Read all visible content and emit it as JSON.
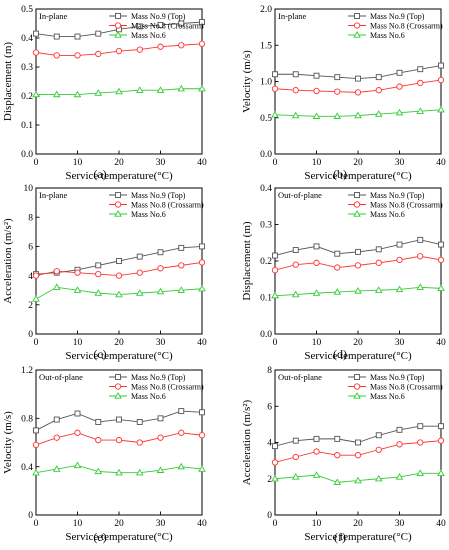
{
  "chart_data": [
    {
      "type": "line",
      "panel_label": "(a)",
      "annotation": "In-plane",
      "xlabel": "Service temperature(°C)",
      "ylabel": "Displacement (m)",
      "xlim": [
        0,
        40
      ],
      "ylim": [
        0,
        0.5
      ],
      "xticks": [
        0,
        10,
        20,
        30,
        40
      ],
      "yticks": [
        0,
        0.1,
        0.2,
        0.3,
        0.4,
        0.5
      ],
      "yticklabels": [
        "0.0",
        "0.1",
        "0.2",
        "0.3",
        "0.4",
        "0.5"
      ],
      "legend": "top-right",
      "x": [
        0,
        5,
        10,
        15,
        20,
        25,
        30,
        35,
        40
      ],
      "series": [
        {
          "name": "Mass No.9 (Top)",
          "marker": "square",
          "color": "#555555",
          "values": [
            0.415,
            0.405,
            0.405,
            0.415,
            0.43,
            0.44,
            0.445,
            0.45,
            0.455
          ]
        },
        {
          "name": "Mass No.8 (Crossarm)",
          "marker": "circle",
          "color": "#ff3333",
          "values": [
            0.35,
            0.34,
            0.34,
            0.345,
            0.355,
            0.36,
            0.37,
            0.375,
            0.38
          ]
        },
        {
          "name": "Mass No.6",
          "marker": "triangle",
          "color": "#33cc33",
          "values": [
            0.205,
            0.205,
            0.205,
            0.21,
            0.215,
            0.22,
            0.22,
            0.225,
            0.225
          ]
        }
      ]
    },
    {
      "type": "line",
      "panel_label": "(b)",
      "annotation": "In-plane",
      "xlabel": "Service temperature(°C)",
      "ylabel": "Velocity (m/s)",
      "xlim": [
        0,
        40
      ],
      "ylim": [
        0,
        2.0
      ],
      "xticks": [
        0,
        10,
        20,
        30,
        40
      ],
      "yticks": [
        0,
        0.5,
        1.0,
        1.5,
        2.0
      ],
      "yticklabels": [
        "0.0",
        "0.5",
        "1.0",
        "1.5",
        "2.0"
      ],
      "legend": "top-right",
      "x": [
        0,
        5,
        10,
        15,
        20,
        25,
        30,
        35,
        40
      ],
      "series": [
        {
          "name": "Mass No.9 (Top)",
          "marker": "square",
          "color": "#555555",
          "values": [
            1.1,
            1.1,
            1.08,
            1.06,
            1.04,
            1.06,
            1.12,
            1.17,
            1.22
          ]
        },
        {
          "name": "Mass No.8 (Crossarm)",
          "marker": "circle",
          "color": "#ff3333",
          "values": [
            0.9,
            0.88,
            0.87,
            0.86,
            0.85,
            0.88,
            0.93,
            0.98,
            1.02
          ]
        },
        {
          "name": "Mass No.6",
          "marker": "triangle",
          "color": "#33cc33",
          "values": [
            0.54,
            0.53,
            0.52,
            0.52,
            0.53,
            0.55,
            0.57,
            0.59,
            0.61
          ]
        }
      ]
    },
    {
      "type": "line",
      "panel_label": "(c)",
      "annotation": "In-plane",
      "xlabel": "Service temperature(°C)",
      "ylabel": "Acceleration (m/s²)",
      "xlim": [
        0,
        40
      ],
      "ylim": [
        0,
        10
      ],
      "xticks": [
        0,
        10,
        20,
        30,
        40
      ],
      "yticks": [
        0,
        2,
        4,
        6,
        8,
        10
      ],
      "yticklabels": [
        "0",
        "2",
        "4",
        "6",
        "8",
        "10"
      ],
      "legend": "top-right",
      "x": [
        0,
        5,
        10,
        15,
        20,
        25,
        30,
        35,
        40
      ],
      "series": [
        {
          "name": "Mass No.9 (Top)",
          "marker": "square",
          "color": "#555555",
          "values": [
            4.1,
            4.2,
            4.4,
            4.7,
            5.0,
            5.3,
            5.6,
            5.9,
            6.0
          ]
        },
        {
          "name": "Mass No.8 (Crossarm)",
          "marker": "circle",
          "color": "#ff3333",
          "values": [
            4.0,
            4.3,
            4.2,
            4.1,
            4.0,
            4.2,
            4.5,
            4.7,
            4.9
          ]
        },
        {
          "name": "Mass No.6",
          "marker": "triangle",
          "color": "#33cc33",
          "values": [
            2.4,
            3.2,
            3.0,
            2.8,
            2.7,
            2.8,
            2.9,
            3.0,
            3.1
          ]
        }
      ]
    },
    {
      "type": "line",
      "panel_label": "(d)",
      "annotation": "Out-of-plane",
      "xlabel": "Service temperature(°C)",
      "ylabel": "Displacement (m)",
      "xlim": [
        0,
        40
      ],
      "ylim": [
        0,
        0.4
      ],
      "xticks": [
        0,
        10,
        20,
        30,
        40
      ],
      "yticks": [
        0,
        0.1,
        0.2,
        0.3,
        0.4
      ],
      "yticklabels": [
        "0.0",
        "0.1",
        "0.2",
        "0.3",
        "0.4"
      ],
      "legend": "top-right",
      "x": [
        0,
        5,
        10,
        15,
        20,
        25,
        30,
        35,
        40
      ],
      "series": [
        {
          "name": "Mass No.9 (Top)",
          "marker": "square",
          "color": "#555555",
          "values": [
            0.215,
            0.23,
            0.24,
            0.22,
            0.225,
            0.232,
            0.245,
            0.258,
            0.245
          ]
        },
        {
          "name": "Mass No.8 (Crossarm)",
          "marker": "circle",
          "color": "#ff3333",
          "values": [
            0.175,
            0.19,
            0.195,
            0.182,
            0.188,
            0.195,
            0.203,
            0.213,
            0.203
          ]
        },
        {
          "name": "Mass No.6",
          "marker": "triangle",
          "color": "#33cc33",
          "values": [
            0.105,
            0.108,
            0.112,
            0.115,
            0.118,
            0.12,
            0.122,
            0.128,
            0.125
          ]
        }
      ]
    },
    {
      "type": "line",
      "panel_label": "(e)",
      "annotation": "Out-of-plane",
      "xlabel": "Service temperature(°C)",
      "ylabel": "Velocity (m/s)",
      "xlim": [
        0,
        40
      ],
      "ylim": [
        0,
        1.2
      ],
      "xticks": [
        0,
        10,
        20,
        30,
        40
      ],
      "yticks": [
        0,
        0.4,
        0.8,
        1.2
      ],
      "yticklabels": [
        "0",
        "0.4",
        "0.8",
        "1.2"
      ],
      "legend": "top-right",
      "x": [
        0,
        5,
        10,
        15,
        20,
        25,
        30,
        35,
        40
      ],
      "series": [
        {
          "name": "Mass No.9 (Top)",
          "marker": "square",
          "color": "#555555",
          "values": [
            0.7,
            0.79,
            0.84,
            0.77,
            0.79,
            0.77,
            0.8,
            0.86,
            0.85
          ]
        },
        {
          "name": "Mass No.8 (Crossarm)",
          "marker": "circle",
          "color": "#ff3333",
          "values": [
            0.58,
            0.64,
            0.68,
            0.62,
            0.62,
            0.6,
            0.64,
            0.68,
            0.66
          ]
        },
        {
          "name": "Mass No.6",
          "marker": "triangle",
          "color": "#33cc33",
          "values": [
            0.35,
            0.38,
            0.41,
            0.36,
            0.35,
            0.35,
            0.37,
            0.4,
            0.38
          ]
        }
      ]
    },
    {
      "type": "line",
      "panel_label": "(f)",
      "annotation": "Out-of-plane",
      "xlabel": "Service temperature(°C)",
      "ylabel": "Acceleration (m/s²)",
      "xlim": [
        0,
        40
      ],
      "ylim": [
        0,
        8
      ],
      "xticks": [
        0,
        10,
        20,
        30,
        40
      ],
      "yticks": [
        0,
        2,
        4,
        6,
        8
      ],
      "yticklabels": [
        "0",
        "2",
        "4",
        "6",
        "8"
      ],
      "legend": "top-right",
      "x": [
        0,
        5,
        10,
        15,
        20,
        25,
        30,
        35,
        40
      ],
      "series": [
        {
          "name": "Mass No.9 (Top)",
          "marker": "square",
          "color": "#555555",
          "values": [
            3.8,
            4.1,
            4.2,
            4.2,
            4.0,
            4.4,
            4.7,
            4.9,
            4.9
          ]
        },
        {
          "name": "Mass No.8 (Crossarm)",
          "marker": "circle",
          "color": "#ff3333",
          "values": [
            2.9,
            3.2,
            3.5,
            3.3,
            3.3,
            3.6,
            3.9,
            4.0,
            4.1
          ]
        },
        {
          "name": "Mass No.6",
          "marker": "triangle",
          "color": "#33cc33",
          "values": [
            2.0,
            2.1,
            2.2,
            1.8,
            1.9,
            2.0,
            2.1,
            2.3,
            2.3
          ]
        }
      ]
    }
  ]
}
